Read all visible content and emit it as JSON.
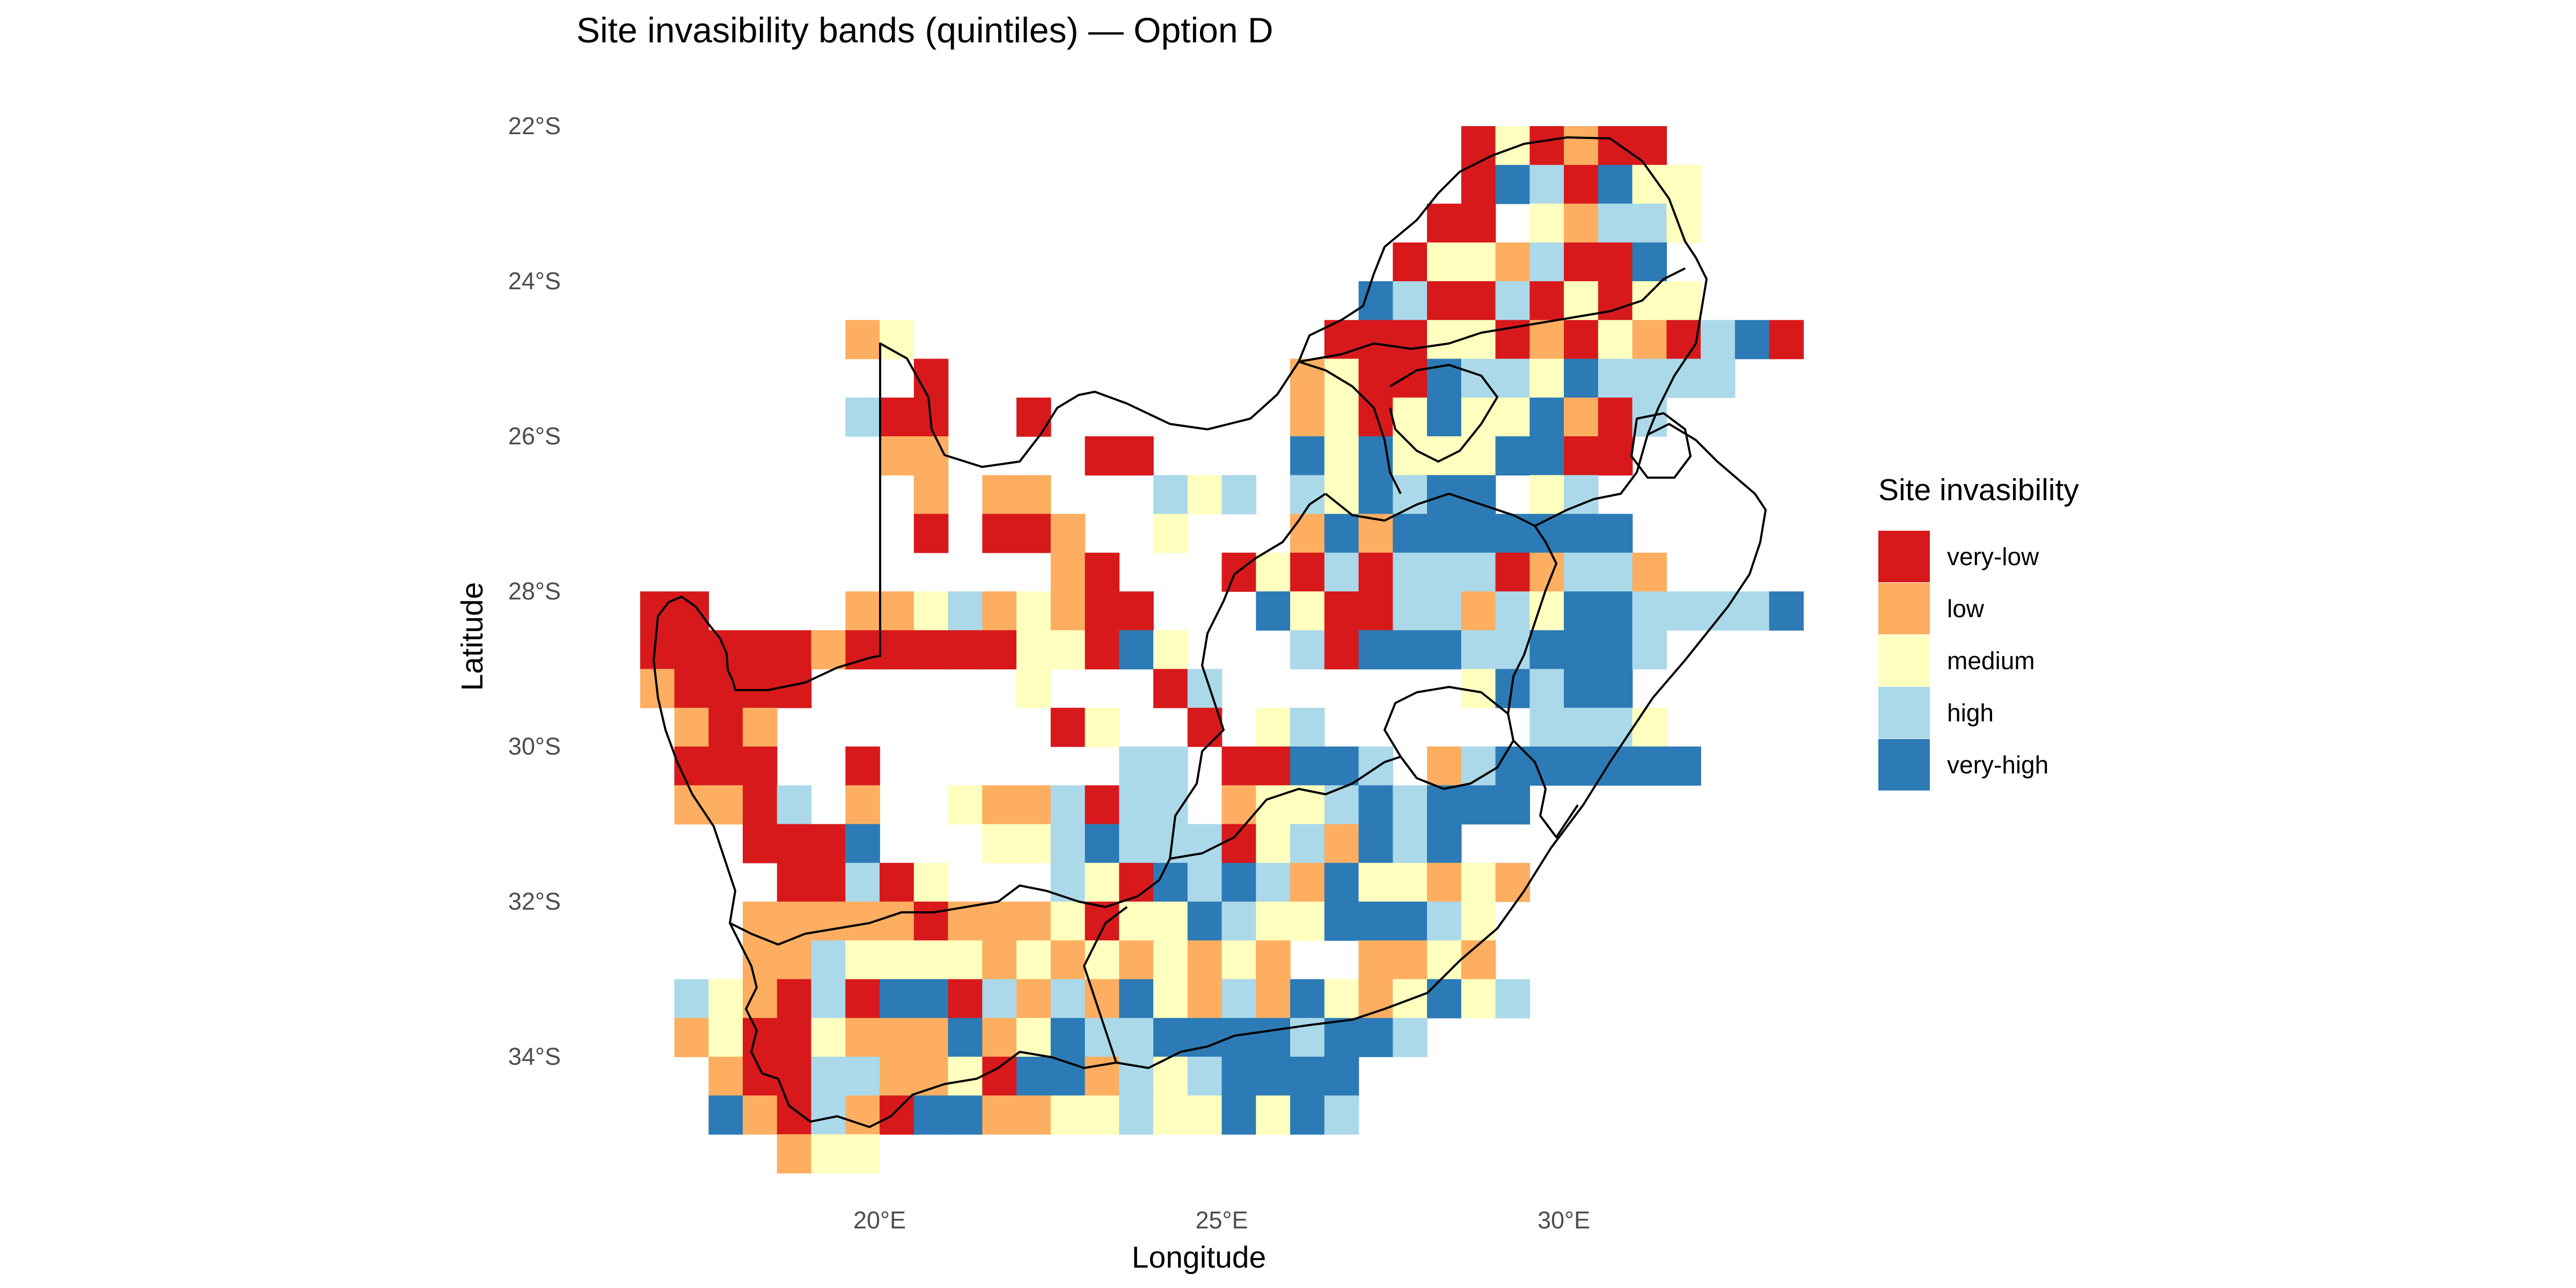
{
  "title": "Site invasibility bands (quintiles) — Option D",
  "x_axis": {
    "title": "Longitude",
    "ticks": [
      {
        "label": "20°E",
        "lon": 20
      },
      {
        "label": "25°E",
        "lon": 25
      },
      {
        "label": "30°E",
        "lon": 30
      }
    ]
  },
  "y_axis": {
    "title": "Latitude",
    "ticks": [
      {
        "label": "22°S",
        "lat": -22
      },
      {
        "label": "24°S",
        "lat": -24
      },
      {
        "label": "26°S",
        "lat": -26
      },
      {
        "label": "28°S",
        "lat": -28
      },
      {
        "label": "30°S",
        "lat": -30
      },
      {
        "label": "32°S",
        "lat": -32
      },
      {
        "label": "34°S",
        "lat": -34
      }
    ]
  },
  "legend": {
    "title": "Site invasibility",
    "position": "right",
    "items": [
      {
        "label": "very-low",
        "color": "#d7191c"
      },
      {
        "label": "low",
        "color": "#fdae61"
      },
      {
        "label": "medium",
        "color": "#ffffbf"
      },
      {
        "label": "high",
        "color": "#abd9e9"
      },
      {
        "label": "very-high",
        "color": "#2c7bb6"
      }
    ]
  },
  "chart_data": {
    "type": "heatmap",
    "grid": false,
    "cell_size_deg": 0.5,
    "xlim": [
      16.5,
      33.2
    ],
    "ylim": [
      -35.3,
      -21.8
    ],
    "band_codes": {
      "1": "very-low",
      "2": "low",
      "3": "medium",
      "4": "high",
      "5": "very-high"
    },
    "rows": [
      {
        "lat": -22.25,
        "cells": [
          {
            "lon_start": 28.75,
            "codes": "13121100"
          }
        ]
      },
      {
        "lat": -22.75,
        "cells": [
          {
            "lon_start": 28.75,
            "codes": "1541533"
          }
        ]
      },
      {
        "lat": -23.25,
        "cells": [
          {
            "lon_start": 28.25,
            "codes": "11032443"
          }
        ]
      },
      {
        "lat": -23.75,
        "cells": [
          {
            "lon_start": 27.75,
            "codes": "13324115"
          }
        ]
      },
      {
        "lat": -24.25,
        "cells": [
          {
            "lon_start": 27.25,
            "codes": "5411413133"
          }
        ]
      },
      {
        "lat": -24.75,
        "cells": [
          {
            "lon_start": 19.75,
            "codes": "23"
          },
          {
            "lon_start": 26.75,
            "codes": "11133121321451"
          }
        ]
      },
      {
        "lat": -25.25,
        "cells": [
          {
            "lon_start": 20.25,
            "codes": "01"
          },
          {
            "lon_start": 26.25,
            "codes": "2311544354444"
          }
        ]
      },
      {
        "lat": -25.75,
        "cells": [
          {
            "lon_start": 19.75,
            "codes": "411"
          },
          {
            "lon_start": 22.25,
            "codes": "1"
          },
          {
            "lon_start": 26.25,
            "codes": "23135335214"
          }
        ]
      },
      {
        "lat": -26.25,
        "cells": [
          {
            "lon_start": 20.25,
            "codes": "22"
          },
          {
            "lon_start": 23.25,
            "codes": "11"
          },
          {
            "lon_start": 26.25,
            "codes": "5353335511"
          }
        ]
      },
      {
        "lat": -26.75,
        "cells": [
          {
            "lon_start": 20.75,
            "codes": "2"
          },
          {
            "lon_start": 21.75,
            "codes": "22"
          },
          {
            "lon_start": 24.25,
            "codes": "4340435455034"
          }
        ]
      },
      {
        "lat": -27.25,
        "cells": [
          {
            "lon_start": 20.75,
            "codes": "1"
          },
          {
            "lon_start": 21.75,
            "codes": "112"
          },
          {
            "lon_start": 24.25,
            "codes": "3"
          },
          {
            "lon_start": 26.25,
            "codes": "2525555555"
          }
        ]
      },
      {
        "lat": -27.75,
        "cells": [
          {
            "lon_start": 22.75,
            "codes": "21"
          },
          {
            "lon_start": 25.25,
            "codes": "1314144412442"
          }
        ]
      },
      {
        "lat": -28.25,
        "cells": [
          {
            "lon_start": 16.75,
            "codes": "11"
          },
          {
            "lon_start": 19.75,
            "codes": "223423211"
          },
          {
            "lon_start": 25.75,
            "codes": "5311442435544445"
          }
        ]
      },
      {
        "lat": -28.75,
        "cells": [
          {
            "lon_start": 16.75,
            "codes": "11111"
          },
          {
            "lon_start": 19.25,
            "codes": "21111133153"
          },
          {
            "lon_start": 26.25,
            "codes": "41555445554"
          }
        ]
      },
      {
        "lat": -29.25,
        "cells": [
          {
            "lon_start": 16.75,
            "codes": "2111"
          },
          {
            "lon_start": 18.75,
            "codes": "1"
          },
          {
            "lon_start": 22.25,
            "codes": "3"
          },
          {
            "lon_start": 24.25,
            "codes": "14"
          },
          {
            "lon_start": 28.75,
            "codes": "35455"
          }
        ]
      },
      {
        "lat": -29.75,
        "cells": [
          {
            "lon_start": 17.25,
            "codes": "212"
          },
          {
            "lon_start": 22.75,
            "codes": "13"
          },
          {
            "lon_start": 24.75,
            "codes": "1"
          },
          {
            "lon_start": 25.75,
            "codes": "34"
          },
          {
            "lon_start": 29.75,
            "codes": "4443"
          }
        ]
      },
      {
        "lat": -30.25,
        "cells": [
          {
            "lon_start": 17.25,
            "codes": "111"
          },
          {
            "lon_start": 19.75,
            "codes": "1"
          },
          {
            "lon_start": 23.75,
            "codes": "44"
          },
          {
            "lon_start": 25.25,
            "codes": "115"
          },
          {
            "lon_start": 26.75,
            "codes": "54"
          },
          {
            "lon_start": 28.25,
            "codes": "24555555"
          }
        ]
      },
      {
        "lat": -30.75,
        "cells": [
          {
            "lon_start": 17.25,
            "codes": "2214"
          },
          {
            "lon_start": 19.75,
            "codes": "2"
          },
          {
            "lon_start": 21.25,
            "codes": "3224144"
          },
          {
            "lon_start": 25.25,
            "codes": "233454555"
          }
        ]
      },
      {
        "lat": -31.25,
        "cells": [
          {
            "lon_start": 18.25,
            "codes": "1112"
          },
          {
            "lon_start": 19.75,
            "codes": "5"
          },
          {
            "lon_start": 21.75,
            "codes": "33454441342545"
          }
        ]
      },
      {
        "lat": -31.75,
        "cells": [
          {
            "lon_start": 18.75,
            "codes": "11"
          },
          {
            "lon_start": 19.75,
            "codes": "413"
          },
          {
            "lon_start": 22.75,
            "codes": "43154542533232"
          }
        ]
      },
      {
        "lat": -32.25,
        "cells": [
          {
            "lon_start": 18.25,
            "codes": "2222212223133543355543"
          }
        ]
      },
      {
        "lat": -32.75,
        "cells": [
          {
            "lon_start": 18.25,
            "codes": "2243333232323232"
          },
          {
            "lon_start": 27.25,
            "codes": "2232"
          }
        ]
      },
      {
        "lat": -33.25,
        "cells": [
          {
            "lon_start": 17.25,
            "codes": "4321415514242532425323534"
          }
        ]
      },
      {
        "lat": -33.75,
        "cells": [
          {
            "lon_start": 17.25,
            "codes": "2311322252354455554554"
          }
        ]
      },
      {
        "lat": -34.25,
        "cells": [
          {
            "lon_start": 17.75,
            "codes": "2114422315524345555"
          }
        ]
      },
      {
        "lat": -34.75,
        "cells": [
          {
            "lon_start": 17.75,
            "codes": "5214215522334335354"
          }
        ]
      },
      {
        "lat": -35.25,
        "cells": [
          {
            "lon_start": 18.75,
            "codes": "233"
          }
        ]
      }
    ]
  }
}
